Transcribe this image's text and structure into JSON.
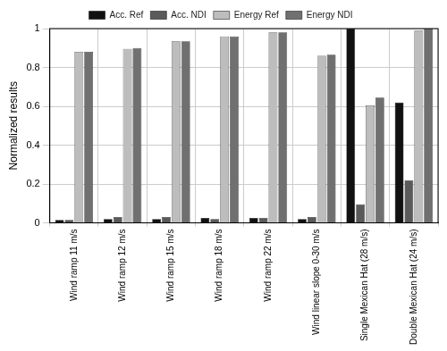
{
  "chart_data": {
    "type": "bar",
    "y_label": "Normalized results",
    "categories": [
      "Wind ramp 11 m/s",
      "Wind ramp 12 m/s",
      "Wind ramp 15 m/s",
      "Wind ramp 18 m/s",
      "Wind ramp 22 m/s",
      "Wind linear slope 0-30 m/s",
      "Single Mexican Hat (28 m/s)",
      "Double Mexican Hat (24 m/s)"
    ],
    "series": [
      {
        "name": "Acc. Ref",
        "color": "#111111",
        "values": [
          0.015,
          0.02,
          0.02,
          0.025,
          0.025,
          0.02,
          1.0,
          0.62
        ]
      },
      {
        "name": "Acc. NDI",
        "color": "#5a5a5a",
        "values": [
          0.015,
          0.03,
          0.03,
          0.02,
          0.025,
          0.03,
          0.095,
          0.22
        ]
      },
      {
        "name": "Energy Ref",
        "color": "#bdbdbd",
        "values": [
          0.88,
          0.895,
          0.935,
          0.96,
          0.98,
          0.86,
          0.605,
          0.99
        ]
      },
      {
        "name": "Energy NDI",
        "color": "#707070",
        "values": [
          0.88,
          0.9,
          0.935,
          0.96,
          0.98,
          0.865,
          0.645,
          1.0
        ]
      }
    ],
    "ylim": [
      0,
      1
    ],
    "yticks": [
      0,
      0.2,
      0.4,
      0.6,
      0.8,
      1
    ],
    "grid": true,
    "legend": "top"
  }
}
